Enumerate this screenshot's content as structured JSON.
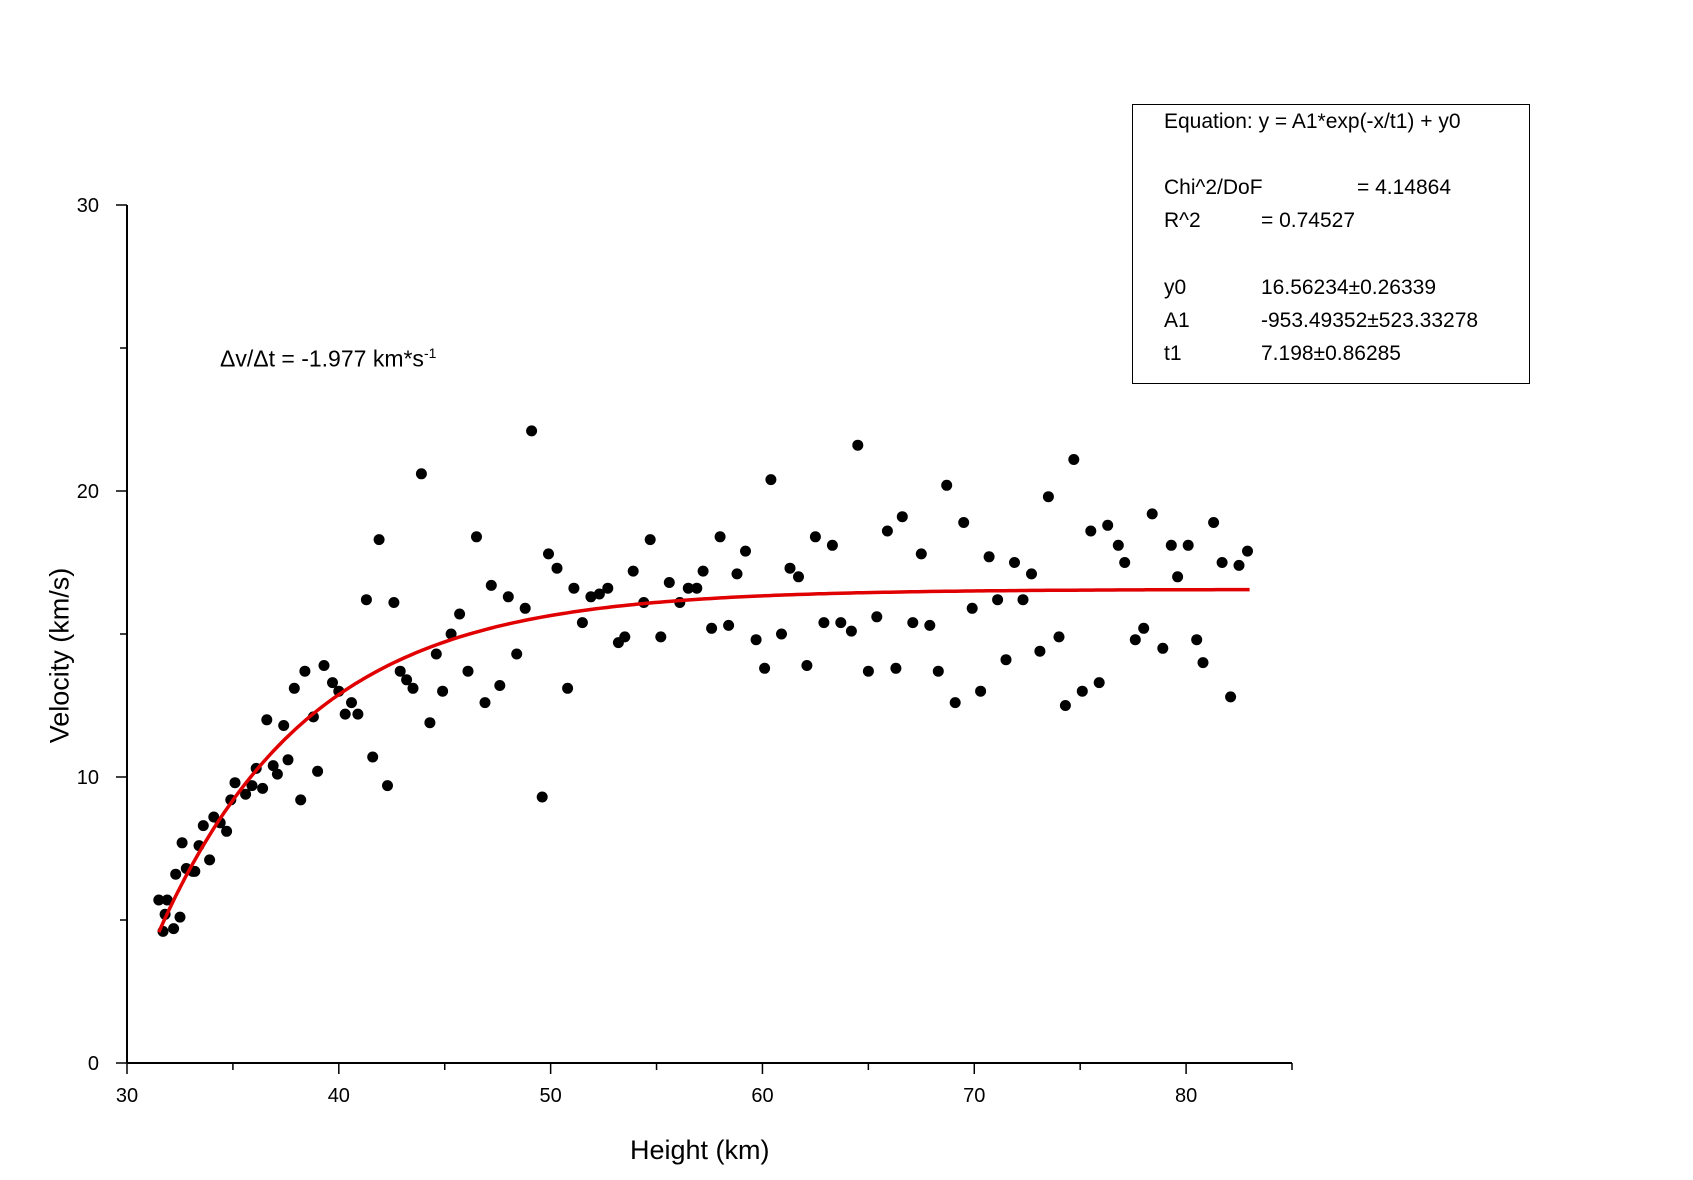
{
  "chart_data": {
    "type": "scatter",
    "xlabel": "Height (km)",
    "ylabel": "Velocity (km/s)",
    "xlim": [
      30,
      85
    ],
    "ylim": [
      0,
      30
    ],
    "x_ticks": [
      "30",
      "40",
      "50",
      "60",
      "70",
      "80"
    ],
    "y_ticks": [
      "0",
      "10",
      "20",
      "30"
    ],
    "grid": false,
    "annotation": {
      "prefix": "Δv/Δt = -1.977 km*s",
      "superscript": "-1"
    },
    "fit_box": {
      "equation": "Equation: y = A1*exp(-x/t1) + y0",
      "rows": [
        {
          "label": "Chi^2/DoF",
          "value": "= 4.14864"
        },
        {
          "label": "R^2",
          "value": "=  0.74527"
        },
        {
          "label": "y0",
          "value": "16.56234±0.26339"
        },
        {
          "label": "A1",
          "value": "-953.49352±523.33278"
        },
        {
          "label": "t1",
          "value": "7.198±0.86285"
        }
      ]
    },
    "fit_curve": {
      "color": "#e00000",
      "model": "y = A1*exp(-x/t1) + y0",
      "A1": -953.49352,
      "t1": 7.198,
      "y0": 16.56234,
      "x_range": [
        31.5,
        83
      ]
    },
    "point_color": "#000000",
    "series": [
      {
        "points": [
          [
            31.5,
            5.7
          ],
          [
            31.7,
            4.6
          ],
          [
            31.8,
            5.2
          ],
          [
            31.9,
            5.7
          ],
          [
            32.2,
            4.7
          ],
          [
            32.3,
            6.6
          ],
          [
            32.5,
            5.1
          ],
          [
            32.6,
            7.7
          ],
          [
            32.8,
            6.8
          ],
          [
            33.1,
            6.7
          ],
          [
            33.2,
            6.7
          ],
          [
            33.4,
            7.6
          ],
          [
            33.6,
            8.3
          ],
          [
            33.9,
            7.1
          ],
          [
            34.1,
            8.6
          ],
          [
            34.4,
            8.4
          ],
          [
            34.7,
            8.1
          ],
          [
            34.9,
            9.2
          ],
          [
            35.1,
            9.8
          ],
          [
            35.6,
            9.4
          ],
          [
            35.9,
            9.7
          ],
          [
            36.1,
            10.3
          ],
          [
            36.4,
            9.6
          ],
          [
            36.6,
            12.0
          ],
          [
            36.9,
            10.4
          ],
          [
            37.1,
            10.1
          ],
          [
            37.4,
            11.8
          ],
          [
            37.6,
            10.6
          ],
          [
            37.9,
            13.1
          ],
          [
            38.2,
            9.2
          ],
          [
            38.4,
            13.7
          ],
          [
            38.8,
            12.1
          ],
          [
            39.0,
            10.2
          ],
          [
            39.3,
            13.9
          ],
          [
            39.7,
            13.3
          ],
          [
            40.0,
            13.0
          ],
          [
            40.3,
            12.2
          ],
          [
            40.6,
            12.6
          ],
          [
            40.9,
            12.2
          ],
          [
            41.3,
            16.2
          ],
          [
            41.6,
            10.7
          ],
          [
            41.9,
            18.3
          ],
          [
            42.3,
            9.7
          ],
          [
            42.6,
            16.1
          ],
          [
            42.9,
            13.7
          ],
          [
            43.2,
            13.4
          ],
          [
            43.5,
            13.1
          ],
          [
            43.9,
            20.6
          ],
          [
            44.3,
            11.9
          ],
          [
            44.6,
            14.3
          ],
          [
            44.9,
            13.0
          ],
          [
            45.3,
            15.0
          ],
          [
            45.7,
            15.7
          ],
          [
            46.1,
            13.7
          ],
          [
            46.5,
            18.4
          ],
          [
            46.9,
            12.6
          ],
          [
            47.2,
            16.7
          ],
          [
            47.6,
            13.2
          ],
          [
            48.0,
            16.3
          ],
          [
            48.4,
            14.3
          ],
          [
            48.8,
            15.9
          ],
          [
            49.1,
            22.1
          ],
          [
            49.6,
            9.3
          ],
          [
            49.9,
            17.8
          ],
          [
            50.3,
            17.3
          ],
          [
            50.8,
            13.1
          ],
          [
            51.1,
            16.6
          ],
          [
            51.5,
            15.4
          ],
          [
            51.9,
            16.3
          ],
          [
            52.3,
            16.4
          ],
          [
            52.7,
            16.6
          ],
          [
            53.2,
            14.7
          ],
          [
            53.5,
            14.9
          ],
          [
            53.9,
            17.2
          ],
          [
            54.4,
            16.1
          ],
          [
            54.7,
            18.3
          ],
          [
            55.2,
            14.9
          ],
          [
            55.6,
            16.8
          ],
          [
            56.1,
            16.1
          ],
          [
            56.5,
            16.6
          ],
          [
            56.9,
            16.6
          ],
          [
            57.2,
            17.2
          ],
          [
            57.6,
            15.2
          ],
          [
            58.0,
            18.4
          ],
          [
            58.4,
            15.3
          ],
          [
            58.8,
            17.1
          ],
          [
            59.2,
            17.9
          ],
          [
            59.7,
            14.8
          ],
          [
            60.1,
            13.8
          ],
          [
            60.4,
            20.4
          ],
          [
            60.9,
            15.0
          ],
          [
            61.3,
            17.3
          ],
          [
            61.7,
            17.0
          ],
          [
            62.1,
            13.9
          ],
          [
            62.5,
            18.4
          ],
          [
            62.9,
            15.4
          ],
          [
            63.3,
            18.1
          ],
          [
            63.7,
            15.4
          ],
          [
            64.2,
            15.1
          ],
          [
            64.5,
            21.6
          ],
          [
            65.0,
            13.7
          ],
          [
            65.4,
            15.6
          ],
          [
            65.9,
            18.6
          ],
          [
            66.3,
            13.8
          ],
          [
            66.6,
            19.1
          ],
          [
            67.1,
            15.4
          ],
          [
            67.5,
            17.8
          ],
          [
            67.9,
            15.3
          ],
          [
            68.3,
            13.7
          ],
          [
            68.7,
            20.2
          ],
          [
            69.1,
            12.6
          ],
          [
            69.5,
            18.9
          ],
          [
            69.9,
            15.9
          ],
          [
            70.3,
            13.0
          ],
          [
            70.7,
            17.7
          ],
          [
            71.1,
            16.2
          ],
          [
            71.5,
            14.1
          ],
          [
            71.9,
            17.5
          ],
          [
            72.3,
            16.2
          ],
          [
            72.7,
            17.1
          ],
          [
            73.1,
            14.4
          ],
          [
            73.5,
            19.8
          ],
          [
            74.0,
            14.9
          ],
          [
            74.3,
            12.5
          ],
          [
            74.7,
            21.1
          ],
          [
            75.1,
            13.0
          ],
          [
            75.5,
            18.6
          ],
          [
            75.9,
            13.3
          ],
          [
            76.3,
            18.8
          ],
          [
            76.8,
            18.1
          ],
          [
            77.1,
            17.5
          ],
          [
            77.6,
            14.8
          ],
          [
            78.0,
            15.2
          ],
          [
            78.4,
            19.2
          ],
          [
            78.9,
            14.5
          ],
          [
            79.3,
            18.1
          ],
          [
            79.6,
            17.0
          ],
          [
            80.1,
            18.1
          ],
          [
            80.5,
            14.8
          ],
          [
            80.8,
            14.0
          ],
          [
            81.3,
            18.9
          ],
          [
            81.7,
            17.5
          ],
          [
            82.1,
            12.8
          ],
          [
            82.5,
            17.4
          ],
          [
            82.9,
            17.9
          ]
        ]
      }
    ]
  }
}
